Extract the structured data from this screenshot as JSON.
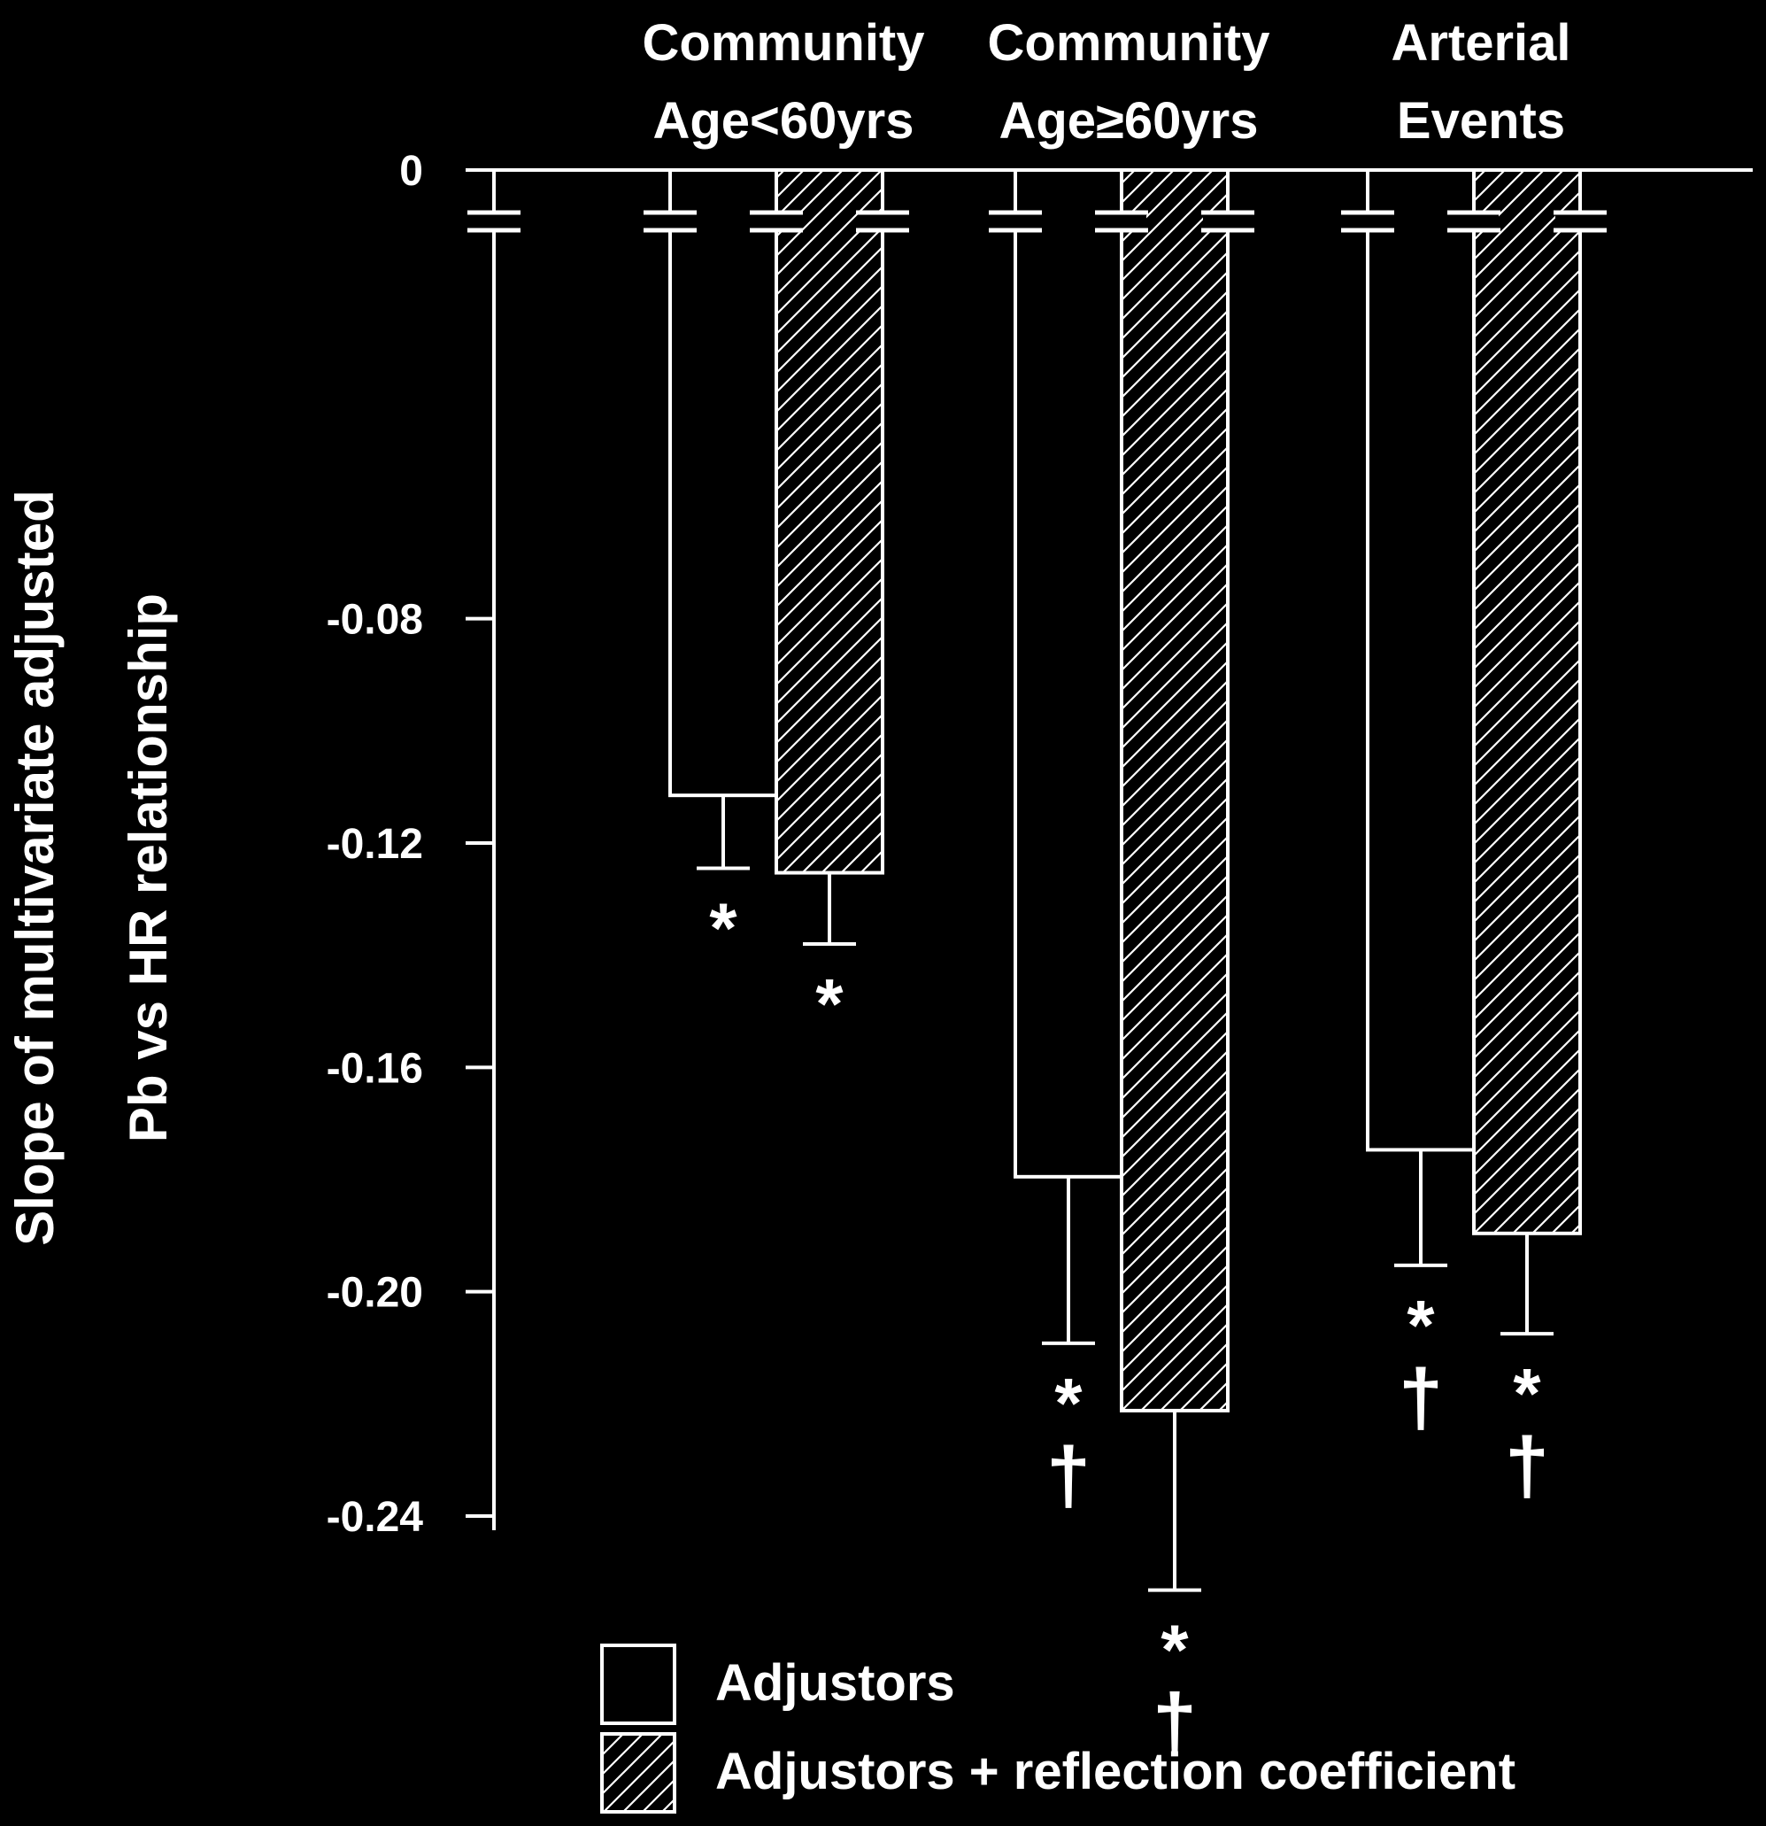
{
  "chart_data": {
    "type": "bar",
    "ylabel_lines": [
      "Slope of multivariate adjusted",
      "Pb vs HR relationship"
    ],
    "ylim": [
      -0.265,
      0
    ],
    "axis_break": true,
    "y_ticks": [
      {
        "value": 0,
        "label": "0"
      },
      {
        "value": -0.08,
        "label": "-0.08"
      },
      {
        "value": -0.12,
        "label": "-0.12"
      },
      {
        "value": -0.16,
        "label": "-0.16"
      },
      {
        "value": -0.2,
        "label": "-0.20"
      },
      {
        "value": -0.24,
        "label": "-0.24"
      }
    ],
    "groups": [
      {
        "lines": [
          "Community",
          "Age<60yrs"
        ]
      },
      {
        "lines": [
          "Community",
          "Age≥60yrs"
        ]
      },
      {
        "lines": [
          "Arterial",
          "Events"
        ]
      }
    ],
    "series": [
      {
        "name": "Adjustors",
        "pattern": "open",
        "values": [
          -0.1115,
          -0.1795,
          -0.1747
        ],
        "err_low": [
          -0.1245,
          -0.2092,
          -0.1953
        ],
        "annotations": [
          [
            "*"
          ],
          [
            "*",
            "†"
          ],
          [
            "*",
            "†"
          ]
        ]
      },
      {
        "name": "Adjustors + reflection coefficient",
        "pattern": "hatched",
        "values": [
          -0.1253,
          -0.2212,
          -0.1896
        ],
        "err_low": [
          -0.138,
          -0.2532,
          -0.2075
        ],
        "annotations": [
          [
            "*"
          ],
          [
            "*",
            "†"
          ],
          [
            "*",
            "†"
          ]
        ]
      }
    ],
    "legend": {
      "position": "bottom-center"
    },
    "colors": {
      "background": "#000000",
      "foreground": "#ffffff"
    }
  }
}
